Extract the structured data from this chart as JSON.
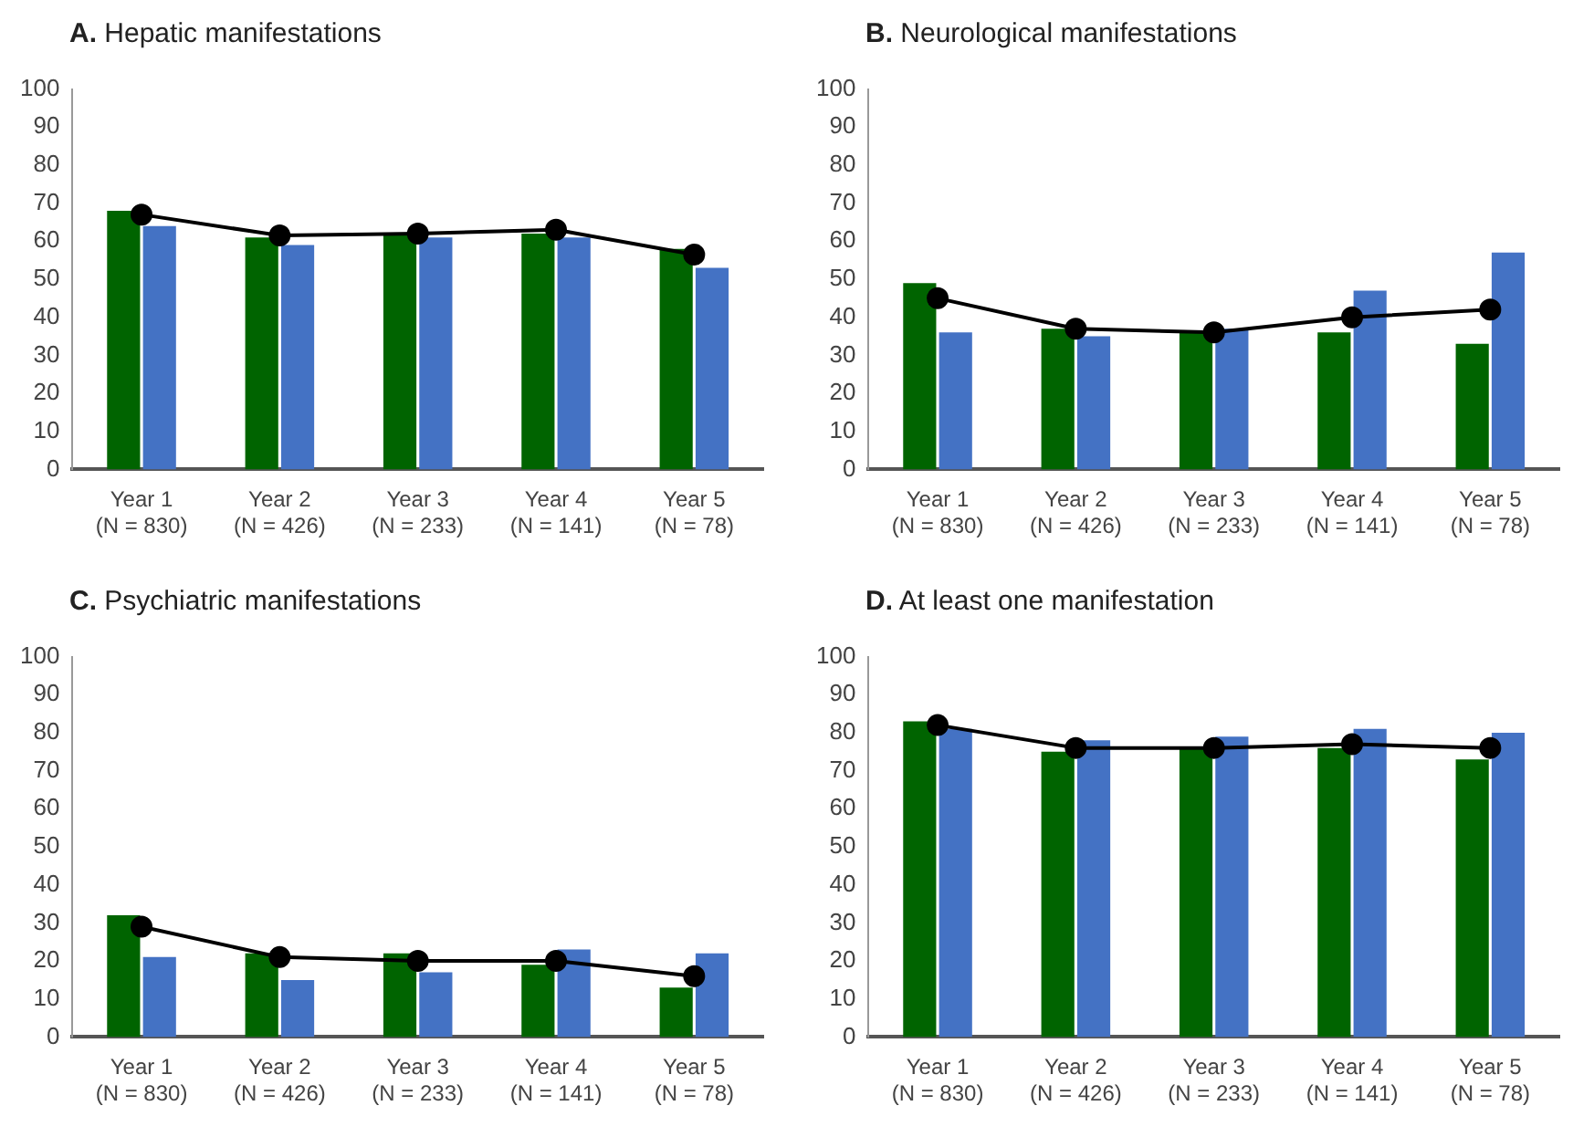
{
  "chart_data": [
    {
      "type": "bar",
      "title": "A. Hepatic manifestations",
      "categories": [
        "Year 1\n(N = 830)",
        "Year 2\n(N = 426)",
        "Year 3\n(N = 233)",
        "Year 4\n(N = 141)",
        "Year 5\n(N = 78)"
      ],
      "ylim": [
        0,
        100
      ],
      "yticks": [
        0,
        10,
        20,
        30,
        40,
        50,
        60,
        70,
        80,
        90,
        100
      ],
      "series": [
        {
          "type": "line",
          "color": "#000000",
          "marker": "circle",
          "values": [
            67,
            61.5,
            62,
            63,
            56.5
          ]
        },
        {
          "color": "#006400",
          "values": [
            68,
            61,
            62,
            62,
            58
          ]
        },
        {
          "color": "#4472c4",
          "values": [
            64,
            59,
            61,
            61,
            53
          ]
        }
      ]
    },
    {
      "type": "bar",
      "title": "B. Neurological manifestations",
      "categories": [
        "Year 1\n(N = 830)",
        "Year 2\n(N = 426)",
        "Year 3\n(N = 233)",
        "Year 4\n(N = 141)",
        "Year 5\n(N = 78)"
      ],
      "ylim": [
        0,
        100
      ],
      "yticks": [
        0,
        10,
        20,
        30,
        40,
        50,
        60,
        70,
        80,
        90,
        100
      ],
      "series": [
        {
          "type": "line",
          "color": "#000000",
          "marker": "circle",
          "values": [
            45,
            37,
            36,
            40,
            42
          ]
        },
        {
          "color": "#006400",
          "values": [
            49,
            37,
            36,
            36,
            33
          ]
        },
        {
          "color": "#4472c4",
          "values": [
            36,
            35,
            37,
            47,
            57
          ]
        }
      ]
    },
    {
      "type": "bar",
      "title": "C. Psychiatric manifestations",
      "categories": [
        "Year 1\n(N = 830)",
        "Year 2\n(N = 426)",
        "Year 3\n(N = 233)",
        "Year 4\n(N = 141)",
        "Year 5\n(N = 78)"
      ],
      "ylim": [
        0,
        100
      ],
      "yticks": [
        0,
        10,
        20,
        30,
        40,
        50,
        60,
        70,
        80,
        90,
        100
      ],
      "series": [
        {
          "type": "line",
          "color": "#000000",
          "marker": "circle",
          "values": [
            29,
            21,
            20,
            20,
            16
          ]
        },
        {
          "color": "#006400",
          "values": [
            32,
            22,
            22,
            19,
            13
          ]
        },
        {
          "color": "#4472c4",
          "values": [
            21,
            15,
            17,
            23,
            22
          ]
        }
      ]
    },
    {
      "type": "bar",
      "title": "D. At least one manifestation",
      "categories": [
        "Year 1\n(N = 830)",
        "Year 2\n(N = 426)",
        "Year 3\n(N = 233)",
        "Year 4\n(N = 141)",
        "Year 5\n(N = 78)"
      ],
      "ylim": [
        0,
        100
      ],
      "yticks": [
        0,
        10,
        20,
        30,
        40,
        50,
        60,
        70,
        80,
        90,
        100
      ],
      "series": [
        {
          "type": "line",
          "color": "#000000",
          "marker": "circle",
          "values": [
            82,
            76,
            76,
            77,
            76
          ]
        },
        {
          "color": "#006400",
          "values": [
            83,
            75,
            76,
            76,
            73
          ]
        },
        {
          "color": "#4472c4",
          "values": [
            81,
            78,
            79,
            81,
            80
          ]
        }
      ]
    }
  ]
}
